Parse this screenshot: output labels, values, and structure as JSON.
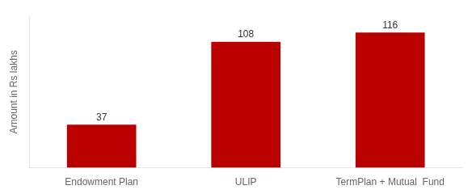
{
  "chart_data": {
    "type": "bar",
    "ylabel": "Amount in Rs lakhs",
    "categories": [
      "Endowment Plan",
      "ULIP",
      "TermPlan + Mutual  Fund"
    ],
    "values": [
      37,
      108,
      116
    ],
    "color": "#bb0000",
    "ylim": [
      0,
      130
    ],
    "grid": false,
    "data_labels": true,
    "tick_labels": "x"
  }
}
